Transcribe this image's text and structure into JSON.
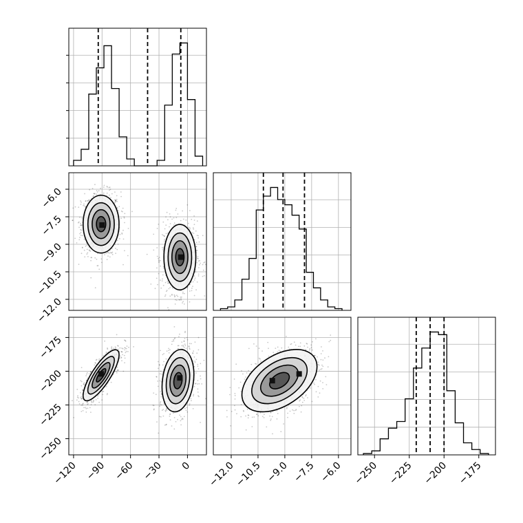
{
  "chart_data": {
    "type": "corner",
    "grid": true,
    "histograms": [
      {
        "param_index": 0,
        "xlim": [
          -125,
          20
        ],
        "bin_edges": [
          -120,
          -112,
          -104,
          -96,
          -88,
          -80,
          -72,
          -64,
          -56,
          -48,
          -40,
          -32,
          -24,
          -16,
          -8,
          0,
          8,
          16
        ],
        "counts": [
          4,
          12,
          52,
          71,
          87,
          56,
          21,
          5,
          0,
          0,
          0,
          4,
          44,
          81,
          89,
          48,
          7
        ],
        "quantiles": [
          -94,
          -42,
          -7
        ]
      },
      {
        "param_index": 1,
        "xlim": [
          -13.0,
          -5.3
        ],
        "bin_edges": [
          -12.6,
          -12.2,
          -11.8,
          -11.4,
          -11.0,
          -10.6,
          -10.2,
          -9.8,
          -9.4,
          -9.0,
          -8.6,
          -8.2,
          -7.8,
          -7.4,
          -7.0,
          -6.6,
          -6.2,
          -5.8
        ],
        "counts": [
          1,
          2,
          6,
          18,
          30,
          58,
          66,
          71,
          64,
          61,
          55,
          47,
          22,
          13,
          6,
          2,
          1
        ],
        "quantiles": [
          -10.2,
          -9.1,
          -7.9
        ]
      },
      {
        "param_index": 2,
        "xlim": [
          -262,
          -163
        ],
        "bin_edges": [
          -258,
          -252,
          -246,
          -240,
          -234,
          -228,
          -222,
          -216,
          -210,
          -204,
          -198,
          -192,
          -186,
          -180,
          -174,
          -168
        ],
        "counts": [
          1,
          3,
          12,
          20,
          25,
          42,
          65,
          80,
          92,
          90,
          48,
          24,
          9,
          4,
          1
        ],
        "quantiles": [
          -220,
          -210,
          -200
        ]
      }
    ],
    "scatter_panels": [
      {
        "x_param": 0,
        "y_param": 1,
        "xlim": [
          -125,
          20
        ],
        "ylim": [
          -12.6,
          -5.1
        ],
        "clusters": [
          {
            "cx": -91,
            "cy": -7.9,
            "sx": 9,
            "sy": 0.75,
            "rho": 0.0,
            "density": 1.0
          },
          {
            "cx": -8,
            "cy": -9.7,
            "sx": 8,
            "sy": 0.85,
            "rho": 0.0,
            "density": 1.0
          }
        ],
        "peaks": [
          {
            "x": -90,
            "y": -7.95
          },
          {
            "x": -7,
            "y": -9.7
          }
        ]
      },
      {
        "x_param": 0,
        "y_param": 2,
        "xlim": [
          -125,
          20
        ],
        "ylim": [
          -262,
          -160
        ],
        "clusters": [
          {
            "cx": -91,
            "cy": -203,
            "sx": 9,
            "sy": 9,
            "rho": 0.8,
            "density": 1.0
          },
          {
            "cx": -10,
            "cy": -207,
            "sx": 8,
            "sy": 11,
            "rho": 0.2,
            "density": 1.0
          }
        ],
        "peaks": [
          {
            "x": -91,
            "y": -202
          },
          {
            "x": -8,
            "y": -205
          }
        ]
      },
      {
        "x_param": 1,
        "y_param": 2,
        "xlim": [
          -13.0,
          -5.3
        ],
        "ylim": [
          -262,
          -160
        ],
        "clusters": [
          {
            "cx": -9.3,
            "cy": -207,
            "sx": 1.0,
            "sy": 11,
            "rho": 0.45,
            "density": 1.0
          }
        ],
        "peaks": [
          {
            "x": -9.7,
            "y": -207
          },
          {
            "x": -8.2,
            "y": -202
          }
        ]
      }
    ],
    "axes_ticks": {
      "x": [
        {
          "param": 0,
          "ticks": [
            -120,
            -90,
            -60,
            -30,
            0
          ],
          "labels": [
            "−120",
            "−90",
            "−60",
            "−30",
            "0"
          ]
        },
        {
          "param": 1,
          "ticks": [
            -12.0,
            -10.5,
            -9.0,
            -7.5,
            -6.0
          ],
          "labels": [
            "−12.0",
            "−10.5",
            "−9.0",
            "−7.5",
            "−6.0"
          ]
        },
        {
          "param": 2,
          "ticks": [
            -250,
            -225,
            -200,
            -175
          ],
          "labels": [
            "−250",
            "−225",
            "−200",
            "−175"
          ]
        }
      ],
      "y": [
        {
          "param": 1,
          "ticks": [
            -6.0,
            -7.5,
            -9.0,
            -10.5,
            -12.0
          ],
          "labels": [
            "−6.0",
            "−7.5",
            "−9.0",
            "−10.5",
            "−12.0"
          ]
        },
        {
          "param": 2,
          "ticks": [
            -175,
            -200,
            -225,
            -250
          ],
          "labels": [
            "−175",
            "−200",
            "−225",
            "−250"
          ]
        }
      ]
    }
  }
}
